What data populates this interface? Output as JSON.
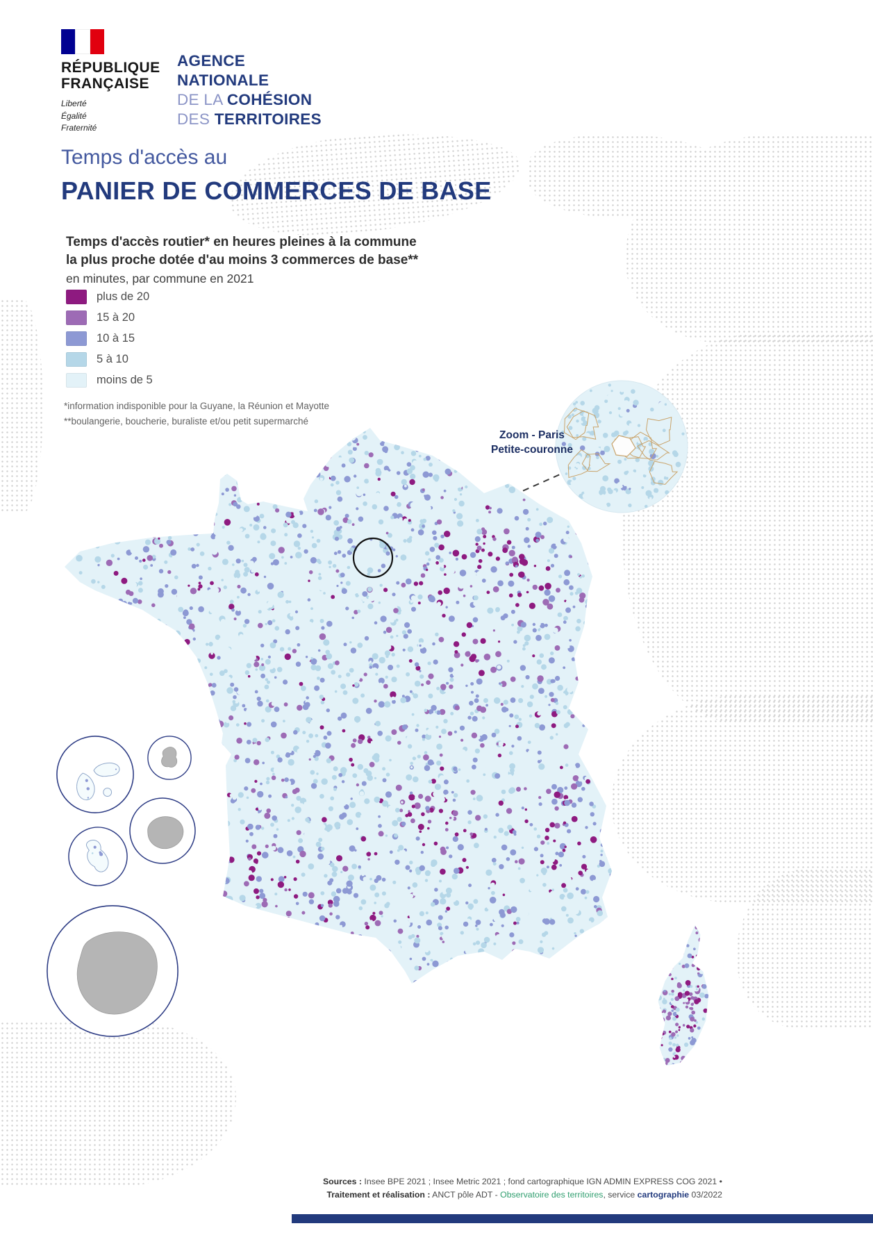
{
  "colors": {
    "accent_navy": "#223a7d",
    "title_blue": "#44599f",
    "anct_light_blue": "#8b94c6",
    "no_data_gray": "#b5b5b5",
    "source_green": "#2f9e6e",
    "commune_outline_tan": "#c9a36a",
    "bottom_bar": "#223a7d",
    "background_dot_gray": "#d2d2d2"
  },
  "logo": {
    "republique": {
      "name_line1": "RÉPUBLIQUE",
      "name_line2": "FRANÇAISE",
      "motto_line1": "Liberté",
      "motto_line2": "Égalité",
      "motto_line3": "Fraternité"
    },
    "anct": {
      "line1": "AGENCE",
      "line2": "NATIONALE",
      "line3_light": "DE LA ",
      "line3_bold": "COHÉSION",
      "line4_light": "DES ",
      "line4_bold": "TERRITOIRES"
    }
  },
  "title": {
    "pre": "Temps d'accès au",
    "main": "PANIER DE COMMERCES DE BASE"
  },
  "subtitle": {
    "bold_line1": "Temps d'accès routier* en heures pleines à la commune",
    "bold_line2": "la plus proche dotée d'au moins 3 commerces de base**",
    "regular_line": "en minutes, par commune en 2021"
  },
  "legend": {
    "items": [
      {
        "label": "plus de 20",
        "color": "#8e1a80"
      },
      {
        "label": "15 à 20",
        "color": "#9d6bb5"
      },
      {
        "label": "10 à 15",
        "color": "#8d99d4"
      },
      {
        "label": "5 à 10",
        "color": "#b5d7e8"
      },
      {
        "label": "moins de 5",
        "color": "#e3f2f8"
      }
    ]
  },
  "footnotes": {
    "line1": "*information indisponible pour la Guyane, la Réunion et Mayotte",
    "line2": "**boulangerie, boucherie, buraliste et/ou petit supermarché"
  },
  "zoom_label": {
    "line1": "Zoom - Paris",
    "line2": "Petite-couronne"
  },
  "sources": {
    "label1": "Sources :",
    "text1": " Insee BPE 2021 ; Insee Metric 2021 ; fond cartographique IGN ADMIN EXPRESS COG 2021 •",
    "label2": "Traitement et réalisation :",
    "text2a": " ANCT pôle ADT - ",
    "green": "Observatoire des territoires",
    "text2b": ", service ",
    "bold2": "cartographie",
    "text2c": " 03/2022"
  }
}
